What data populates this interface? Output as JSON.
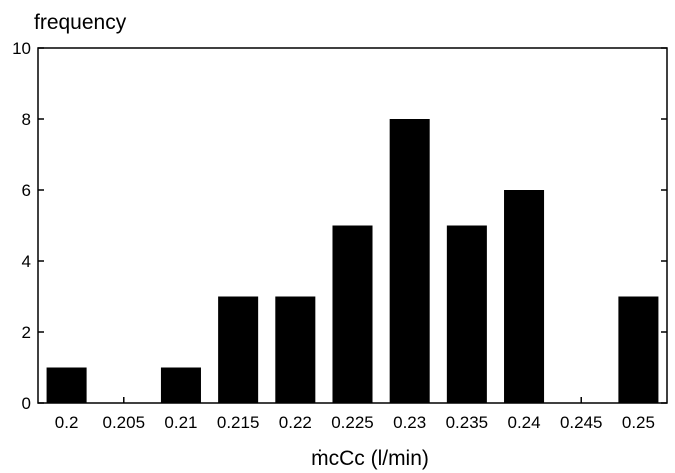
{
  "chart_data": {
    "type": "bar",
    "ylabel": "frequency",
    "xlabel": "ṁcCc (l/min)",
    "categories": [
      "0.2",
      "0.205",
      "0.21",
      "0.215",
      "0.22",
      "0.225",
      "0.23",
      "0.235",
      "0.24",
      "0.245",
      "0.25"
    ],
    "values": [
      1,
      0,
      1,
      3,
      3,
      5,
      8,
      5,
      6,
      0,
      3
    ],
    "ylim": [
      0,
      10
    ],
    "yticks": [
      "0",
      "2",
      "4",
      "6",
      "8",
      "10"
    ],
    "grid": false,
    "legend": "none",
    "bar_color": "#000000"
  }
}
